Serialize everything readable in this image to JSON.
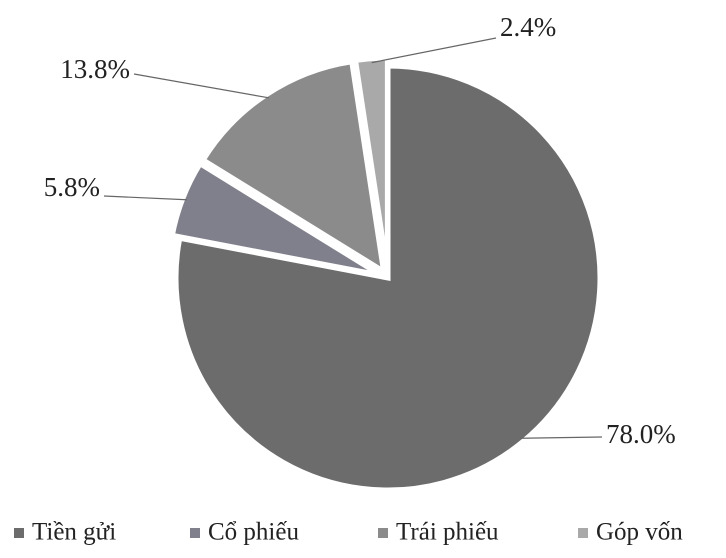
{
  "chart_data": {
    "type": "pie",
    "categories": [
      "Tiền gửi",
      "Cổ phiếu",
      "Trái phiếu",
      "Góp vốn"
    ],
    "values": [
      78.0,
      5.8,
      13.8,
      2.4
    ],
    "value_labels": [
      "78.0%",
      "5.8%",
      "13.8%",
      "2.4%"
    ],
    "colors": [
      "#6c6c6c",
      "#80808c",
      "#8b8b8b",
      "#a9a9a9"
    ],
    "legend": "bottom"
  }
}
